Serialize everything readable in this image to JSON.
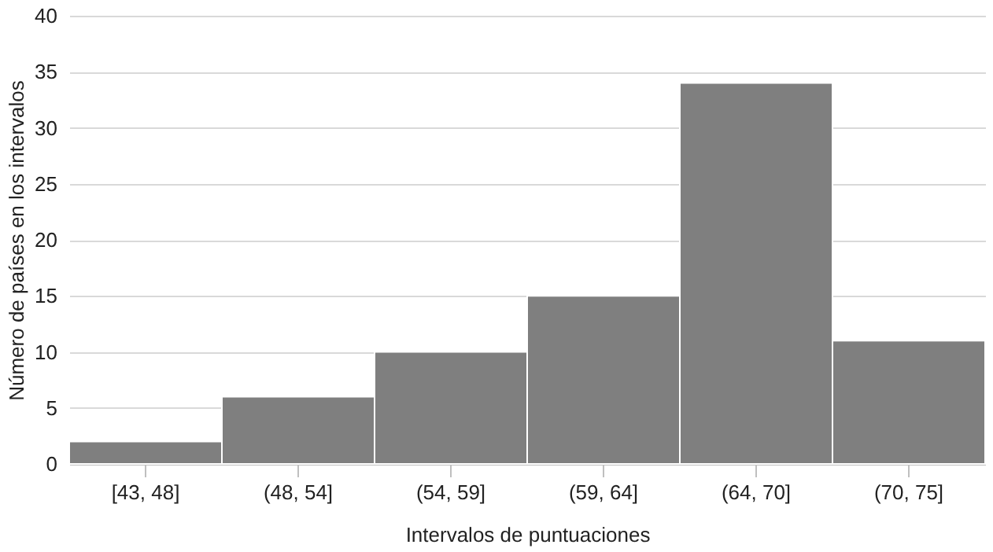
{
  "chart_data": {
    "type": "bar",
    "xlabel": "Intervalos de puntuaciones",
    "ylabel": "Número de países en los intervalos",
    "categories": [
      "[43, 48]",
      "(48, 54]",
      "(54, 59]",
      "(59, 64]",
      "(64, 70]",
      "(70, 75]"
    ],
    "values": [
      2,
      6,
      10,
      15,
      34,
      11
    ],
    "color": "#7f7f7f",
    "ylim": [
      0,
      40
    ],
    "yticks": [
      0,
      5,
      10,
      15,
      20,
      25,
      30,
      35,
      40
    ],
    "grid": "y"
  }
}
